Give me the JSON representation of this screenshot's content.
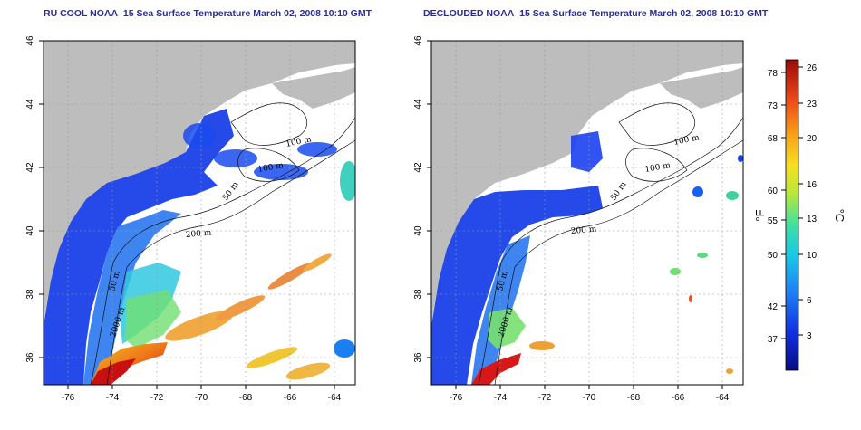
{
  "panels": [
    {
      "title": "RU COOL NOAA–15 Sea Surface Temperature March 02, 2008 10:10 GMT",
      "contour_labels": [
        "100 m",
        "100 m",
        "50 m",
        "200 m",
        "50 m",
        "2000 m"
      ]
    },
    {
      "title": "DECLOUDED NOAA–15 Sea Surface Temperature March 02, 2008 10:10 GMT",
      "contour_labels": [
        "100 m",
        "100 m",
        "50 m",
        "200 m",
        "50 m",
        "2000 m"
      ]
    }
  ],
  "axes": {
    "lon_ticks": [
      "-76",
      "-74",
      "-72",
      "-70",
      "-68",
      "-66",
      "-64"
    ],
    "lat_ticks": [
      "46",
      "44",
      "42",
      "40",
      "38",
      "36"
    ]
  },
  "colorbar": {
    "f_unit": "°F",
    "c_unit": "°C",
    "f_ticks": [
      "78",
      "73",
      "68",
      "60",
      "55",
      "50",
      "42",
      "37"
    ],
    "c_ticks": [
      "26",
      "23",
      "20",
      "16",
      "13",
      "10",
      "6",
      "3"
    ]
  },
  "colors": {
    "title": "#2a2aa0",
    "land": "#bdbdbd",
    "grid": "#9a9a9a"
  }
}
